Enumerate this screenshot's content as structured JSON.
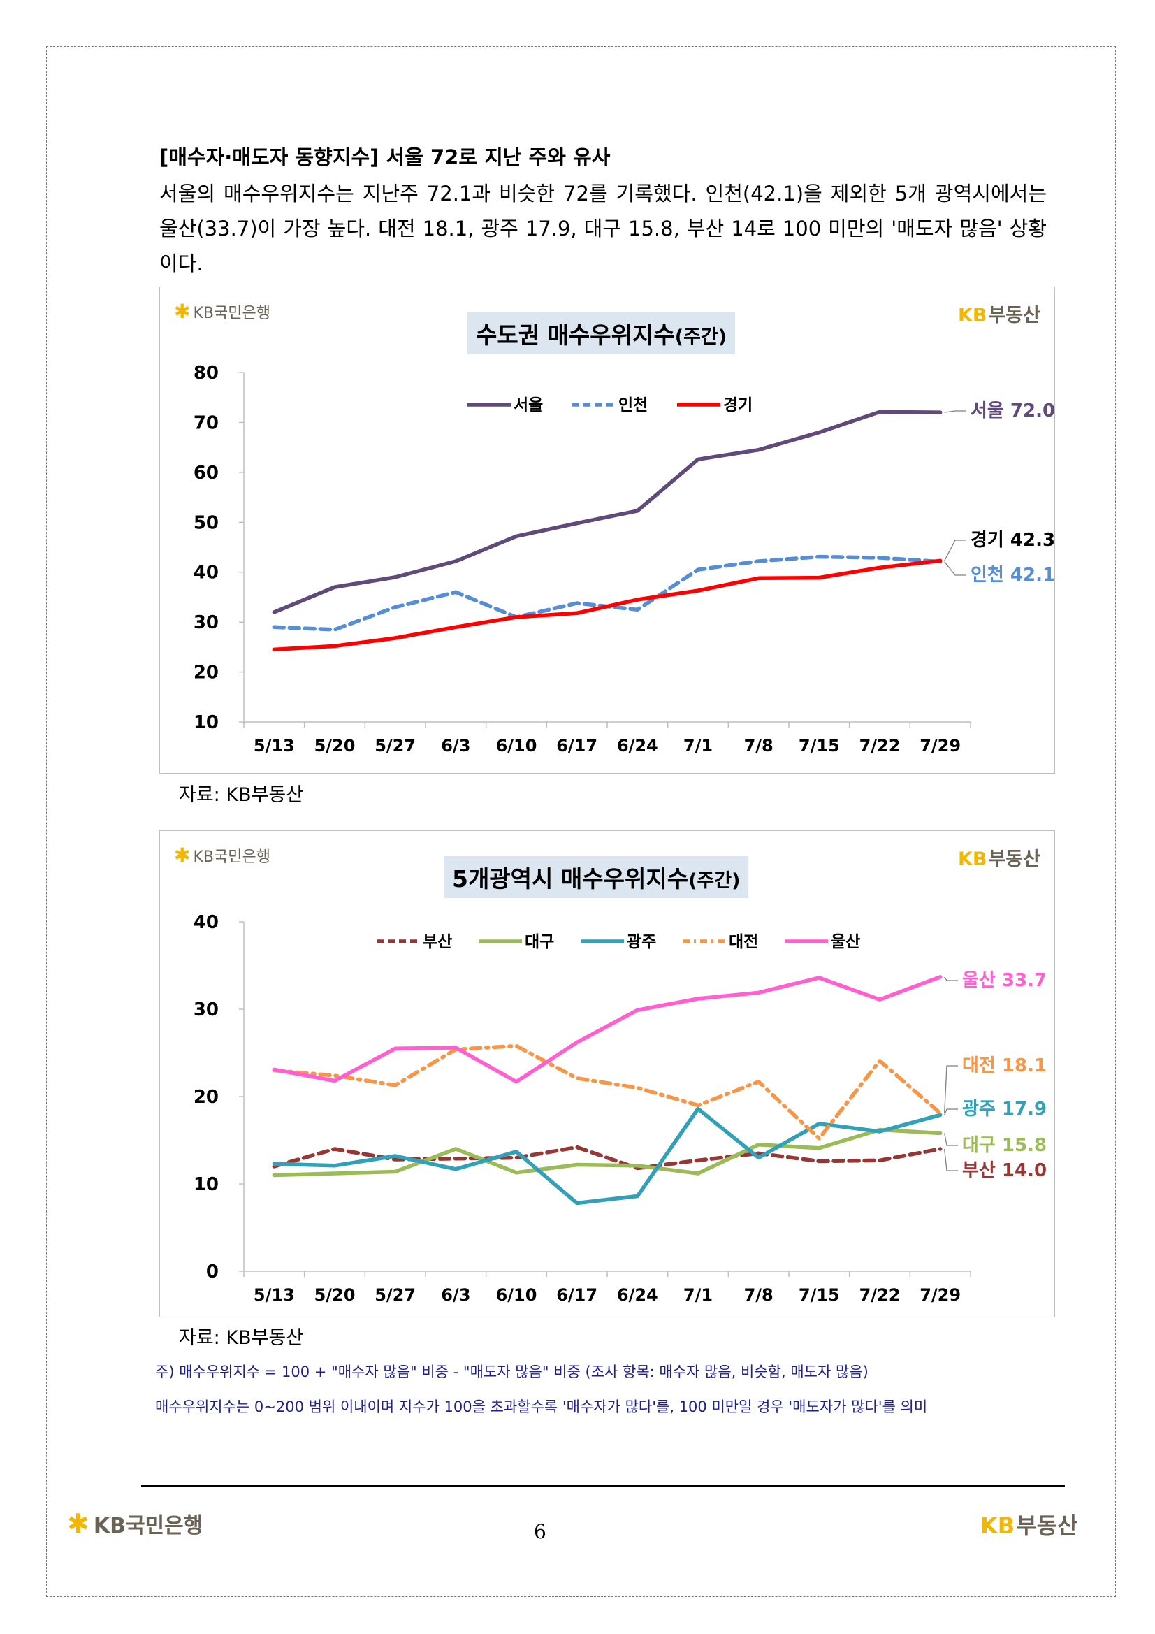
{
  "heading": "[매수자·매도자 동향지수] 서울 72로 지난 주와 유사",
  "paragraph": "서울의 매수우위지수는 지난주 72.1과 비슷한 72를 기록했다. 인천(42.1)을 제외한 5개 광역시에서는 울산(33.7)이 가장 높다. 대전 18.1, 광주 17.9, 대구 15.8, 부산 14로 100 미만의 '매도자 많음' 상황이다.",
  "logos": {
    "kbstar_text": "KB국민은행",
    "kbland_kb": "KB",
    "kbland_text": "부동산"
  },
  "chart_data": [
    {
      "type": "line",
      "title": "수도권 매수우위지수",
      "title_suffix": "(주간)",
      "categories": [
        "5/13",
        "5/20",
        "5/27",
        "6/3",
        "6/10",
        "6/17",
        "6/24",
        "7/1",
        "7/8",
        "7/15",
        "7/22",
        "7/29"
      ],
      "ylim": [
        10,
        80
      ],
      "yticks": [
        10,
        20,
        30,
        40,
        50,
        60,
        70,
        80
      ],
      "legend_position": "top",
      "series": [
        {
          "name": "서울",
          "color": "#604a7b",
          "dash": "solid",
          "values": [
            32.0,
            37.0,
            39.0,
            42.2,
            47.2,
            49.8,
            52.3,
            62.6,
            64.5,
            68.0,
            72.1,
            72.0
          ],
          "end_label": "서울 72.0"
        },
        {
          "name": "인천",
          "color": "#558ed5",
          "dash": "dashed",
          "values": [
            29.0,
            28.5,
            33.0,
            36.0,
            31.0,
            33.8,
            32.5,
            40.5,
            42.2,
            43.1,
            42.9,
            42.1
          ],
          "end_label": "인천 42.1"
        },
        {
          "name": "경기",
          "color": "#ff0000",
          "dash": "solid",
          "values": [
            24.5,
            25.2,
            26.8,
            29.0,
            31.0,
            31.8,
            34.5,
            36.3,
            38.8,
            38.9,
            40.9,
            42.3
          ],
          "end_label": "경기 42.3"
        }
      ]
    },
    {
      "type": "line",
      "title": "5개광역시 매수우위지수",
      "title_suffix": "(주간)",
      "categories": [
        "5/13",
        "5/20",
        "5/27",
        "6/3",
        "6/10",
        "6/17",
        "6/24",
        "7/1",
        "7/8",
        "7/15",
        "7/22",
        "7/29"
      ],
      "ylim": [
        0,
        40
      ],
      "yticks": [
        0,
        10,
        20,
        30,
        40
      ],
      "legend_position": "top",
      "series": [
        {
          "name": "부산",
          "color": "#953735",
          "dash": "dashed",
          "values": [
            12.0,
            14.0,
            12.8,
            12.9,
            13.0,
            14.2,
            11.8,
            12.7,
            13.5,
            12.6,
            12.7,
            14.0
          ],
          "end_label": "부산 14.0"
        },
        {
          "name": "대구",
          "color": "#9bbb59",
          "dash": "solid",
          "values": [
            11.0,
            11.2,
            11.4,
            14.0,
            11.3,
            12.2,
            12.1,
            11.2,
            14.5,
            14.1,
            16.2,
            15.8
          ],
          "end_label": "대구 15.8"
        },
        {
          "name": "광주",
          "color": "#31a0b8",
          "dash": "solid",
          "values": [
            12.3,
            12.1,
            13.2,
            11.7,
            13.7,
            7.8,
            8.6,
            18.6,
            13.0,
            16.9,
            16.0,
            17.9
          ],
          "end_label": "광주 17.9"
        },
        {
          "name": "대전",
          "color": "#f79646",
          "dash": "dashdot",
          "values": [
            23.0,
            22.4,
            21.3,
            25.4,
            25.8,
            22.1,
            21.0,
            19.0,
            21.7,
            15.2,
            24.1,
            18.1
          ],
          "end_label": "대전 18.1"
        },
        {
          "name": "울산",
          "color": "#ff5fd1",
          "dash": "solid",
          "values": [
            23.1,
            21.8,
            25.5,
            25.6,
            21.7,
            26.2,
            29.9,
            31.2,
            31.9,
            33.6,
            31.1,
            33.7
          ],
          "end_label": "울산 33.7"
        }
      ]
    }
  ],
  "source1": "자료: KB부동산",
  "source2": "자료: KB부동산",
  "note1": "주) 매수우위지수 = 100 + \"매수자 많음\" 비중 - \"매도자 많음\" 비중  (조사 항목: 매수자 많음, 비슷함, 매도자 많음)",
  "note2": "매수우위지수는 0~200 범위 이내이며 지수가 100을 초과할수록 '매수자가 많다'를, 100 미만일 경우 '매도자가 많다'를 의미",
  "footer": {
    "kbstar_text": "KB국민은행",
    "kbland_kb": "KB",
    "kbland_text": "부동산",
    "page_number": "6"
  }
}
